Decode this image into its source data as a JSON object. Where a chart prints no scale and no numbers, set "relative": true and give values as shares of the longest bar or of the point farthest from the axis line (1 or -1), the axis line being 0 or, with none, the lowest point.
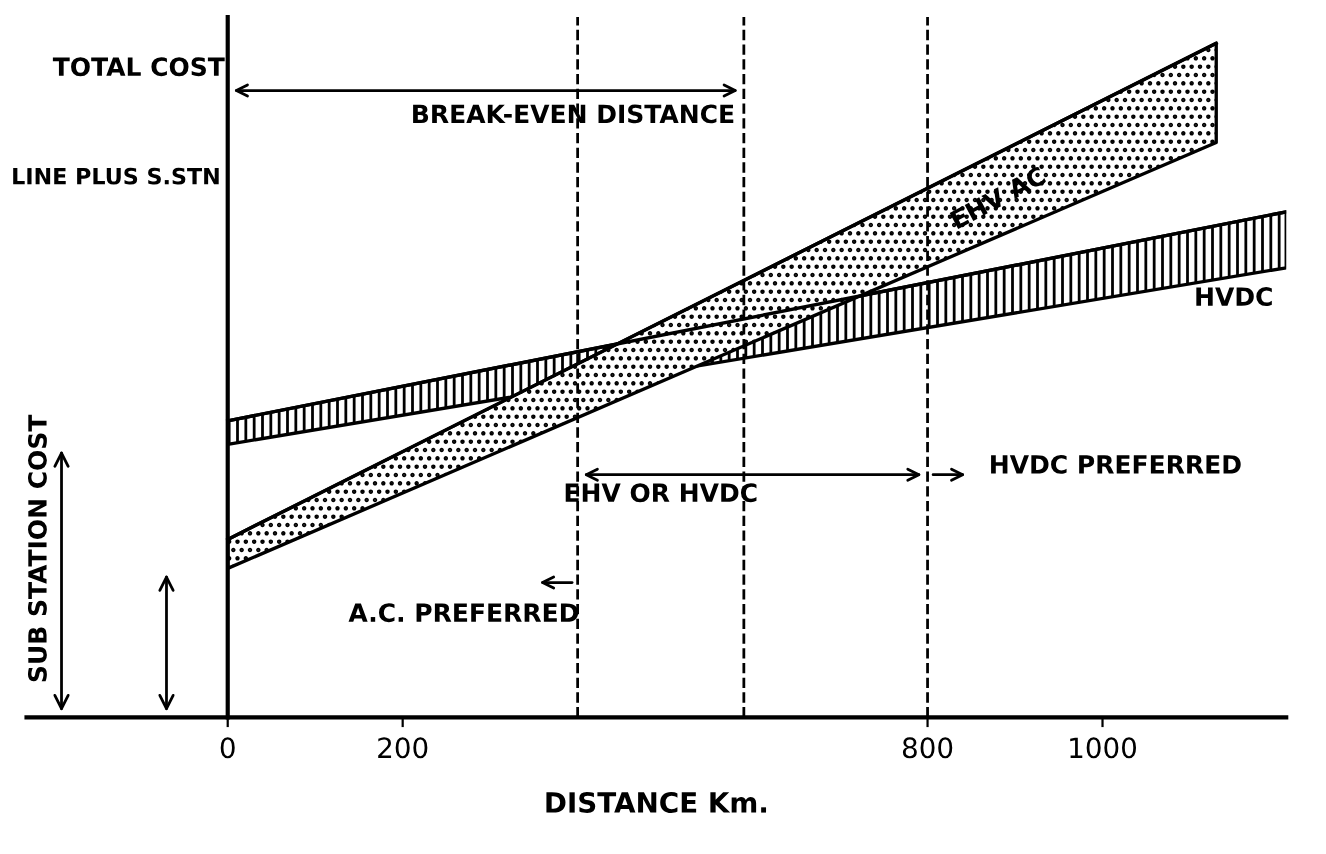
{
  "chart_data": {
    "type": "line",
    "relative": true,
    "xlabel": "DISTANCE Km.",
    "ylabel": "TOTAL COST",
    "xlim": [
      -230,
      1210
    ],
    "xticks": [
      0,
      200,
      800,
      1000
    ],
    "series": [
      {
        "name": "HVDC",
        "color": "#000000",
        "x": [
          0,
          1210
        ],
        "values": [
          0.44,
          0.75
        ],
        "lower": [
          0.405,
          0.667
        ],
        "upper": [
          0.44,
          0.75
        ]
      },
      {
        "name": "EHV AC",
        "color": "#000000",
        "x": [
          0,
          1130
        ],
        "values": [
          0.264,
          1.0
        ],
        "lower": [
          0.221,
          0.853
        ],
        "upper": [
          0.264,
          1.0
        ]
      }
    ],
    "ref_lines": [
      {
        "axis": "x",
        "value": 400,
        "label": "A.C. PREFERRED",
        "line_style": "dashed"
      },
      {
        "axis": "x",
        "value": 590,
        "label": "BREAK-EVEN DISTANCE",
        "line_style": "dashed"
      },
      {
        "axis": "x",
        "value": 800,
        "label": "HVDC PREFERRED",
        "line_style": "dashed"
      }
    ],
    "annotations": [
      "LINE PLUS S.STN",
      "SUB STATION COST",
      "EHV OR HVDC"
    ],
    "grid": false,
    "marker": "none",
    "line_style": "solid"
  }
}
